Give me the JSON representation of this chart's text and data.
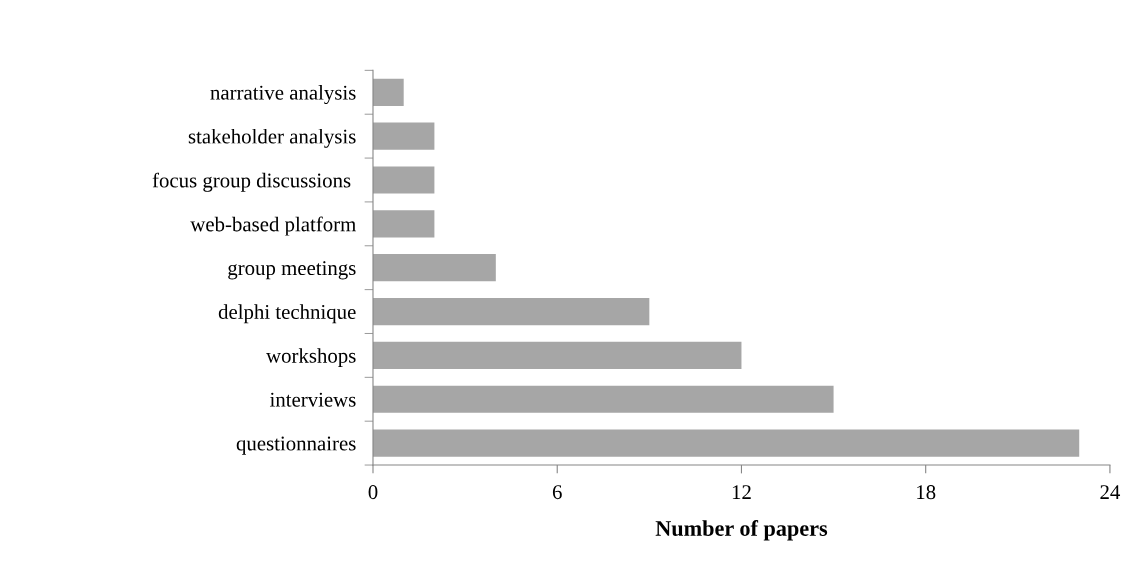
{
  "chart_data": {
    "type": "bar",
    "orientation": "horizontal",
    "xlabel": "Number of papers",
    "categories": [
      "narrative analysis",
      "stakeholder analysis",
      "focus group discussions ",
      "web-based platform",
      "group meetings",
      "delphi technique",
      "workshops",
      "interviews",
      "questionnaires"
    ],
    "values": [
      1,
      2,
      2,
      2,
      4,
      9,
      12,
      15,
      23
    ],
    "color": "#a6a6a6",
    "xlim": [
      0,
      24
    ],
    "xticks": [
      0,
      6,
      12,
      18,
      24
    ],
    "grid": false,
    "legend": false
  }
}
